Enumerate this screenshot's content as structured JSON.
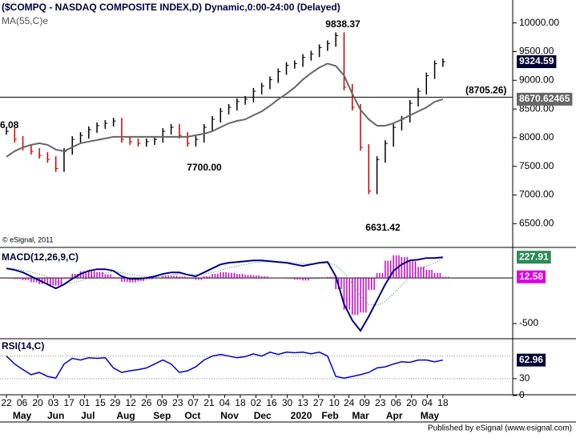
{
  "chart_data": [
    {
      "type": "price",
      "title": "($COMPQ - NASDAQ COMPOSITE INDEX,D) Dynamic,0:00-24:00 (Delayed)",
      "subtitle": "MA(55,C)e",
      "credit": "© eSignal, 2011",
      "ylim": [
        6100,
        10400
      ],
      "yticks": [
        {
          "value": 6500,
          "label": "6500.00"
        },
        {
          "value": 7000,
          "label": "7000.00"
        },
        {
          "value": 7500,
          "label": "7500.00"
        },
        {
          "value": 8000,
          "label": "8000.00"
        },
        {
          "value": 8500,
          "label": "8500.00"
        },
        {
          "value": 9000,
          "label": "9000.00"
        },
        {
          "value": 9500,
          "label": "9500.00"
        },
        {
          "value": 10000,
          "label": "10000.00"
        }
      ],
      "series": [
        {
          "color": "#000000",
          "down_color": "#cc0000",
          "values": [
            8110,
            7970,
            7830,
            7760,
            7690,
            7620,
            7460,
            7760,
            7970,
            8040,
            8140,
            8210,
            8250,
            8290,
            7970,
            7930,
            7900,
            7930,
            7970,
            8110,
            8180,
            8040,
            7900,
            7970,
            8180,
            8320,
            8460,
            8530,
            8630,
            8670,
            8810,
            8900,
            9010,
            9150,
            9260,
            9290,
            9400,
            9460,
            9570,
            9640,
            9780,
            8880,
            8530,
            7830,
            7070,
            7620,
            7900,
            8180,
            8320,
            8600,
            8810,
            9080,
            9290,
            9324.59
          ],
          "last_label": "9324.59",
          "label_color": "#000033"
        },
        {
          "color": "#666666",
          "values": [
            7667,
            7764,
            7833,
            7875,
            7903,
            7875,
            7792,
            7764,
            7833,
            7903,
            7931,
            7958,
            7986,
            8014,
            8014,
            8014,
            8014,
            8014,
            8014,
            8014,
            8014,
            8014,
            8014,
            8042,
            8069,
            8111,
            8181,
            8250,
            8292,
            8319,
            8389,
            8458,
            8556,
            8667,
            8764,
            8875,
            9014,
            9125,
            9222,
            9292,
            9250,
            9083,
            8764,
            8486,
            8319,
            8208,
            8208,
            8250,
            8319,
            8389,
            8458,
            8528,
            8625,
            8670.62465
          ],
          "last_label": "8670.62465",
          "label_color": "#666666"
        }
      ],
      "level": {
        "value": 8705.26,
        "label": "(8705.26)"
      },
      "annotations": [
        "9838.37",
        "7700.00",
        "6631.42",
        "6.08"
      ]
    },
    {
      "type": "macd",
      "title": "MACD(12,26,9,C)",
      "ylim": [
        -640,
        300
      ],
      "yticks": [
        -500
      ],
      "series": [
        {
          "color": "#000080",
          "values": [
            105,
            88,
            61,
            18,
            -26,
            -70,
            -114,
            -70,
            -9,
            44,
            79,
            96,
            96,
            79,
            18,
            -9,
            -9,
            0,
            18,
            44,
            61,
            61,
            35,
            18,
            61,
            105,
            149,
            167,
            175,
            184,
            193,
            193,
            184,
            175,
            167,
            149,
            132,
            149,
            167,
            175,
            18,
            -289,
            -465,
            -579,
            -421,
            -246,
            -70,
            79,
            149,
            193,
            202,
            219,
            219,
            227.91
          ],
          "last_label": "227.91",
          "label_color": "#2e8b57"
        },
        {
          "color": "#2e8b57",
          "values": [
            110,
            100,
            85,
            65,
            40,
            10,
            -30,
            -60,
            -55,
            -30,
            0,
            30,
            55,
            70,
            60,
            40,
            25,
            15,
            12,
            20,
            35,
            45,
            45,
            38,
            42,
            60,
            85,
            110,
            130,
            150,
            165,
            175,
            178,
            177,
            174,
            168,
            160,
            157,
            159,
            163,
            140,
            60,
            -60,
            -200,
            -290,
            -300,
            -260,
            -170,
            -80,
            10,
            80,
            130,
            165,
            215.33
          ]
        },
        {
          "color": "#cc00cc",
          "values": [
            -5,
            -12,
            -24,
            -47,
            -66,
            -80,
            -84,
            -10,
            46,
            74,
            79,
            66,
            41,
            9,
            -42,
            -49,
            -34,
            -15,
            6,
            24,
            26,
            16,
            -10,
            -20,
            19,
            45,
            64,
            57,
            45,
            34,
            28,
            18,
            6,
            -2,
            -7,
            -19,
            -28,
            -8,
            8,
            12,
            -122,
            -349,
            -405,
            -379,
            -131,
            54,
            190,
            249,
            229,
            183,
            122,
            89,
            54,
            12.58
          ],
          "last_label": "12.58",
          "label_color": "#dd00dd"
        }
      ]
    },
    {
      "type": "line",
      "title": "RSI(14,C)",
      "ylim": [
        0,
        98
      ],
      "yticks": [
        0,
        30
      ],
      "levels": [
        30,
        70
      ],
      "series": [
        {
          "color": "#0000cc",
          "values": [
            70,
            56,
            46,
            37,
            41,
            34,
            31,
            56,
            66,
            63,
            67,
            66,
            67,
            49,
            41,
            44,
            46,
            49,
            56,
            63,
            56,
            41,
            44,
            51,
            63,
            70,
            73,
            70,
            67,
            69,
            74,
            70,
            77,
            73,
            77,
            76,
            77,
            74,
            77,
            70,
            34,
            31,
            34,
            37,
            41,
            49,
            51,
            56,
            60,
            59,
            63,
            63,
            60,
            62.96
          ],
          "last_label": "62.96",
          "label_color": "#000033"
        }
      ],
      "xticks": [
        {
          "value": 0,
          "label": "22"
        },
        {
          "value": 1.9,
          "label": "06"
        },
        {
          "value": 3.8,
          "label": "20"
        },
        {
          "value": 5.7,
          "label": "03"
        },
        {
          "value": 7.6,
          "label": "17"
        },
        {
          "value": 9.5,
          "label": "01"
        },
        {
          "value": 11.4,
          "label": "15"
        },
        {
          "value": 13.2,
          "label": "29"
        },
        {
          "value": 15.1,
          "label": "12"
        },
        {
          "value": 17,
          "label": "26"
        },
        {
          "value": 18.9,
          "label": "09"
        },
        {
          "value": 20.8,
          "label": "23"
        },
        {
          "value": 22.7,
          "label": "07"
        },
        {
          "value": 24.6,
          "label": "21"
        },
        {
          "value": 26.5,
          "label": "04"
        },
        {
          "value": 28.4,
          "label": "18"
        },
        {
          "value": 30.3,
          "label": "02"
        },
        {
          "value": 32.2,
          "label": "16"
        },
        {
          "value": 34.1,
          "label": "30"
        },
        {
          "value": 36,
          "label": "13"
        },
        {
          "value": 37.9,
          "label": "27"
        },
        {
          "value": 39.8,
          "label": "10"
        },
        {
          "value": 41.6,
          "label": "24"
        },
        {
          "value": 43.5,
          "label": "09"
        },
        {
          "value": 45.4,
          "label": "23"
        },
        {
          "value": 47.3,
          "label": "06"
        },
        {
          "value": 49.2,
          "label": "20"
        },
        {
          "value": 51.1,
          "label": "04"
        },
        {
          "value": 53,
          "label": "18"
        }
      ],
      "months": [
        {
          "value": 1.9,
          "label": "May"
        },
        {
          "value": 6,
          "label": "Jun"
        },
        {
          "value": 9.9,
          "label": "Jul"
        },
        {
          "value": 14.5,
          "label": "Aug"
        },
        {
          "value": 18.9,
          "label": "Sep"
        },
        {
          "value": 22.6,
          "label": "Oct"
        },
        {
          "value": 27.1,
          "label": "Nov"
        },
        {
          "value": 31.1,
          "label": "Dec"
        },
        {
          "value": 35.8,
          "label": "2020"
        },
        {
          "value": 39.3,
          "label": "Feb"
        },
        {
          "value": 43,
          "label": "Mar"
        },
        {
          "value": 47.1,
          "label": "Apr"
        },
        {
          "value": 51.4,
          "label": "May"
        }
      ]
    }
  ],
  "footer": "Published by eSignal (www.esignal.com)"
}
